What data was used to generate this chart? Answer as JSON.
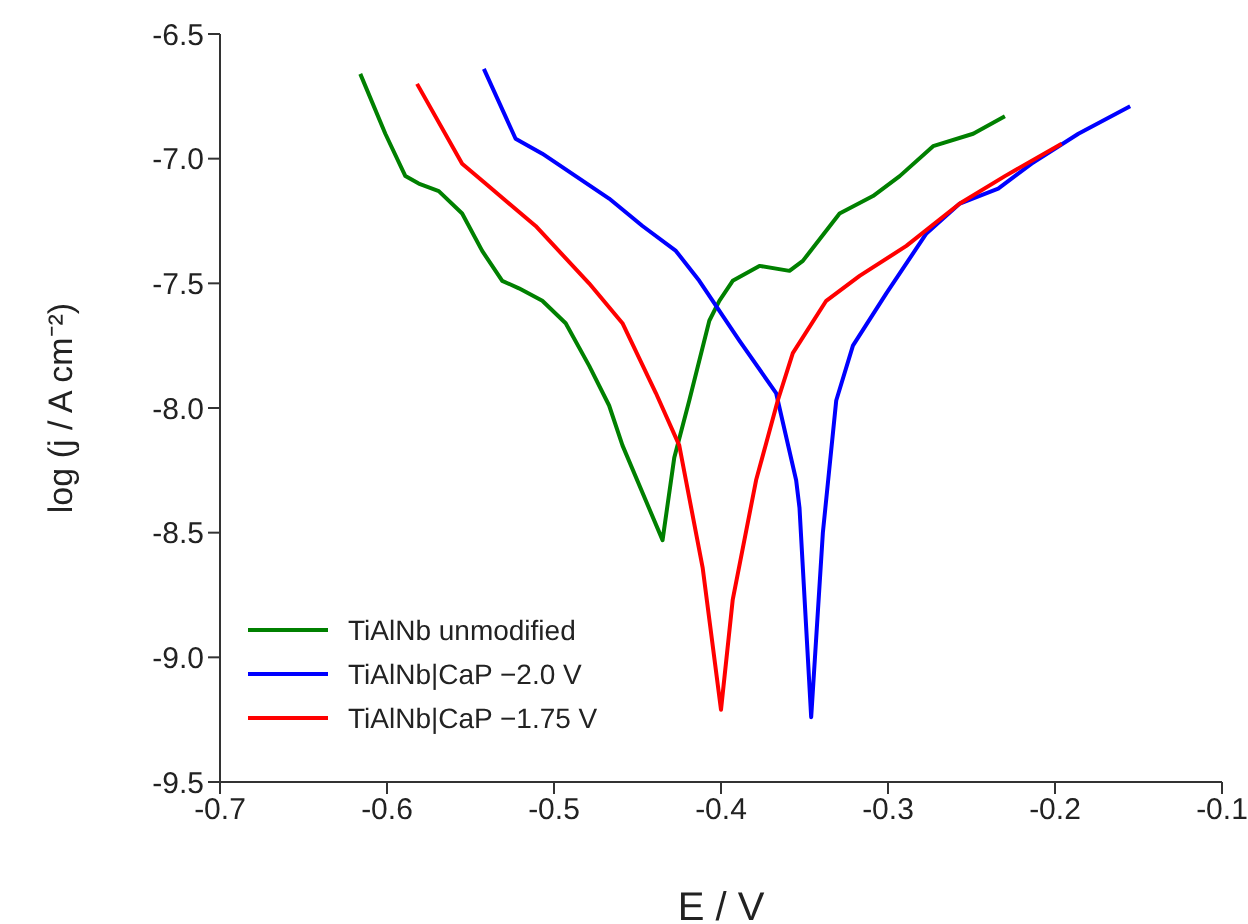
{
  "chart_data": {
    "type": "line",
    "xlabel": "E / V",
    "ylabel": "log (j / A cm⁻²)",
    "xlim": [
      -0.7,
      -0.1
    ],
    "xticks": [
      -0.7,
      -0.6,
      -0.5,
      -0.4,
      -0.3,
      -0.2,
      -0.1
    ],
    "ylim": [
      -9.5,
      -6.5
    ],
    "yticks": [
      -9.5,
      {
        "value": -9,
        "label": "-9.0"
      },
      -8.5,
      {
        "value": -8,
        "label": "-8.0"
      },
      -7.5,
      {
        "value": -7,
        "label": "-7.0"
      },
      -6.5
    ],
    "legend": "bottom left",
    "marker": "none",
    "line_style": "solid",
    "series": [
      {
        "name": "TiAlNb unmodified",
        "color": "#008000",
        "x": [
          -0.616,
          -0.601,
          -0.589,
          -0.581,
          -0.569,
          -0.555,
          -0.543,
          -0.531,
          -0.521,
          -0.507,
          -0.493,
          -0.479,
          -0.467,
          -0.459,
          -0.435,
          -0.428,
          -0.419,
          -0.407,
          -0.401,
          -0.393,
          -0.377,
          -0.359,
          -0.351,
          -0.329,
          -0.309,
          -0.293,
          -0.273,
          -0.249,
          -0.23
        ],
        "values": [
          -6.66,
          -6.9,
          -7.07,
          -7.1,
          -7.13,
          -7.22,
          -7.37,
          -7.49,
          -7.52,
          -7.57,
          -7.66,
          -7.83,
          -7.99,
          -8.15,
          -8.53,
          -8.2,
          -7.97,
          -7.65,
          -7.57,
          -7.49,
          -7.43,
          -7.45,
          -7.41,
          -7.22,
          -7.15,
          -7.07,
          -6.95,
          -6.9,
          -6.83
        ]
      },
      {
        "name": "TiAlNb|CaP −2.0 V",
        "color": "#0000ff",
        "x": [
          -0.542,
          -0.523,
          -0.507,
          -0.487,
          -0.467,
          -0.447,
          -0.427,
          -0.413,
          -0.389,
          -0.367,
          -0.355,
          -0.353,
          -0.346,
          -0.339,
          -0.331,
          -0.321,
          -0.301,
          -0.277,
          -0.257,
          -0.234,
          -0.214,
          -0.186,
          -0.155
        ],
        "values": [
          -6.64,
          -6.92,
          -6.98,
          -7.07,
          -7.16,
          -7.27,
          -7.37,
          -7.49,
          -7.73,
          -7.94,
          -8.29,
          -8.4,
          -9.24,
          -8.5,
          -7.97,
          -7.75,
          -7.54,
          -7.3,
          -7.18,
          -7.12,
          -7.02,
          -6.9,
          -6.79
        ]
      },
      {
        "name": "TiAlNb|CaP −1.75 V",
        "color": "#ff0000",
        "x": [
          -0.582,
          -0.555,
          -0.541,
          -0.511,
          -0.479,
          -0.459,
          -0.439,
          -0.425,
          -0.411,
          -0.4,
          -0.393,
          -0.379,
          -0.366,
          -0.357,
          -0.337,
          -0.317,
          -0.289,
          -0.257,
          -0.23,
          -0.196
        ],
        "values": [
          -6.7,
          -7.02,
          -7.1,
          -7.27,
          -7.5,
          -7.66,
          -7.94,
          -8.15,
          -8.64,
          -9.21,
          -8.77,
          -8.29,
          -7.97,
          -7.78,
          -7.57,
          -7.47,
          -7.35,
          -7.18,
          -7.07,
          -6.94
        ]
      }
    ]
  }
}
